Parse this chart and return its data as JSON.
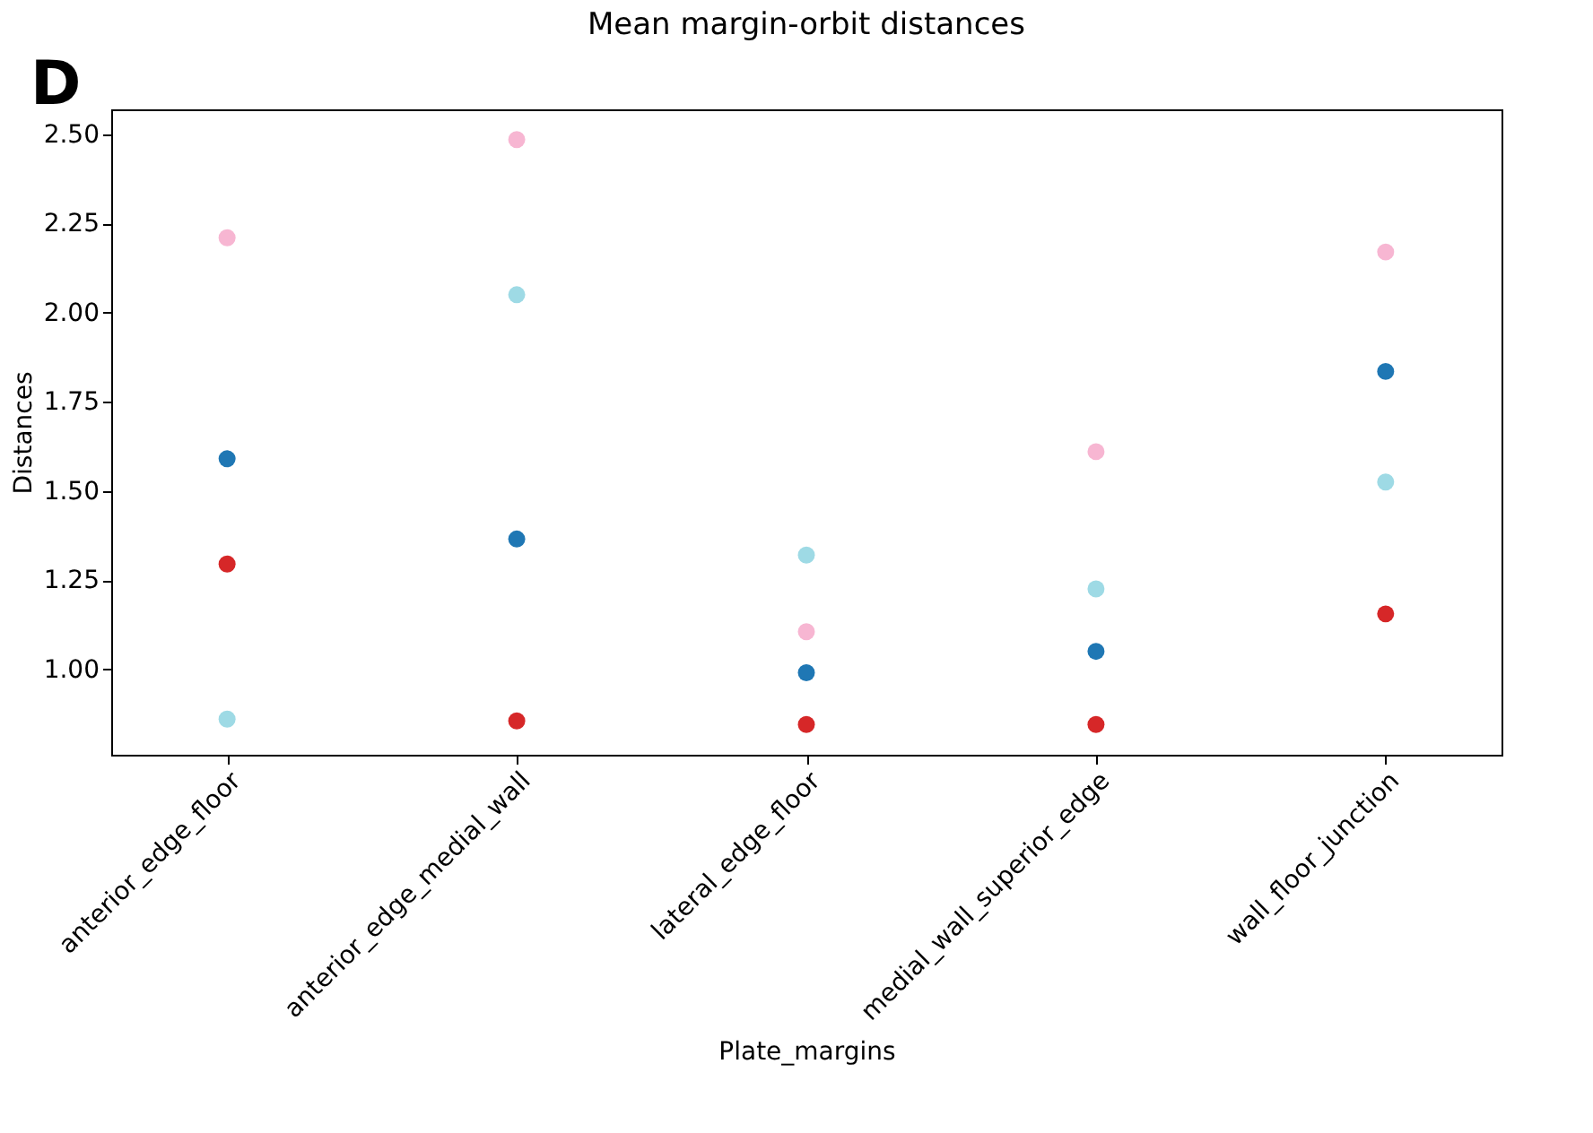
{
  "chart_data": {
    "type": "scatter",
    "title": "Mean margin-orbit distances",
    "xlabel": "Plate_margins",
    "ylabel": "Distances",
    "categories": [
      "anterior_edge_floor",
      "anterior_edge_medial_wall",
      "lateral_edge_floor",
      "medial_wall_superior_edge",
      "wall_floor_junction"
    ],
    "series": [
      {
        "color": "#f7b6d2",
        "values": [
          2.21,
          2.485,
          1.105,
          1.61,
          2.17
        ]
      },
      {
        "color": "#9edae5",
        "values": [
          0.86,
          2.05,
          1.32,
          1.225,
          1.525
        ]
      },
      {
        "color": "#1f77b4",
        "values": [
          1.59,
          1.365,
          0.99,
          1.05,
          1.835
        ]
      },
      {
        "color": "#d62728",
        "values": [
          1.295,
          0.855,
          0.845,
          0.845,
          1.155
        ]
      }
    ],
    "ylim": [
      0.76,
      2.57
    ],
    "yticks": [
      {
        "value": 1,
        "label": "1.00"
      },
      1.25,
      {
        "value": 1.5,
        "label": "1.50"
      },
      1.75,
      {
        "value": 2,
        "label": "2.00"
      },
      2.25,
      {
        "value": 2.5,
        "label": "2.50"
      }
    ],
    "grid": false,
    "legend": false,
    "marker": "circle",
    "annotations": [
      "D"
    ]
  }
}
